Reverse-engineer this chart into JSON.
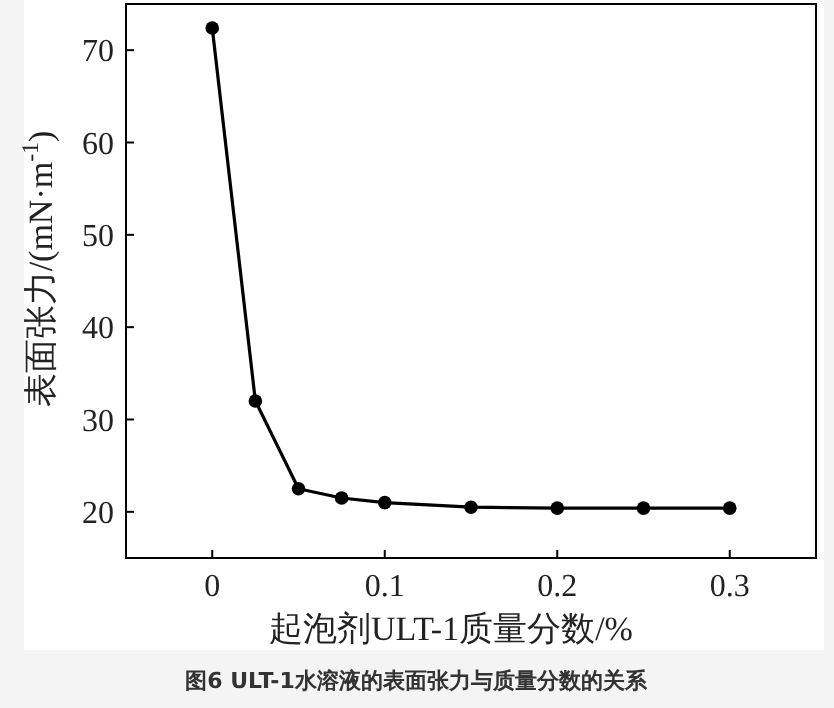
{
  "chart_data": {
    "type": "line",
    "xlabel": "起泡剂ULT-1质量分数/%",
    "ylabel": "表面张力/(mN·m$^{-1}$)",
    "annotations": [
      "图6  ULT-1水溶液的表面张力与质量分数的关系"
    ],
    "x": [
      0,
      0.025,
      0.05,
      0.075,
      0.1,
      0.15,
      0.2,
      0.25,
      0.3
    ],
    "series": [
      {
        "color": "#000000",
        "values": [
          72.4,
          32,
          22.5,
          21.5,
          21,
          20.5,
          20.4,
          20.4,
          20.4
        ]
      }
    ],
    "xlim": [
      -0.05,
      0.35
    ],
    "ylim": [
      15,
      75
    ],
    "xticks": [
      0,
      0.1,
      0.2,
      0.3
    ],
    "yticks": [
      20,
      30,
      40,
      50,
      60,
      70
    ],
    "marker": "circle",
    "line_style": "solid",
    "grid": false
  }
}
